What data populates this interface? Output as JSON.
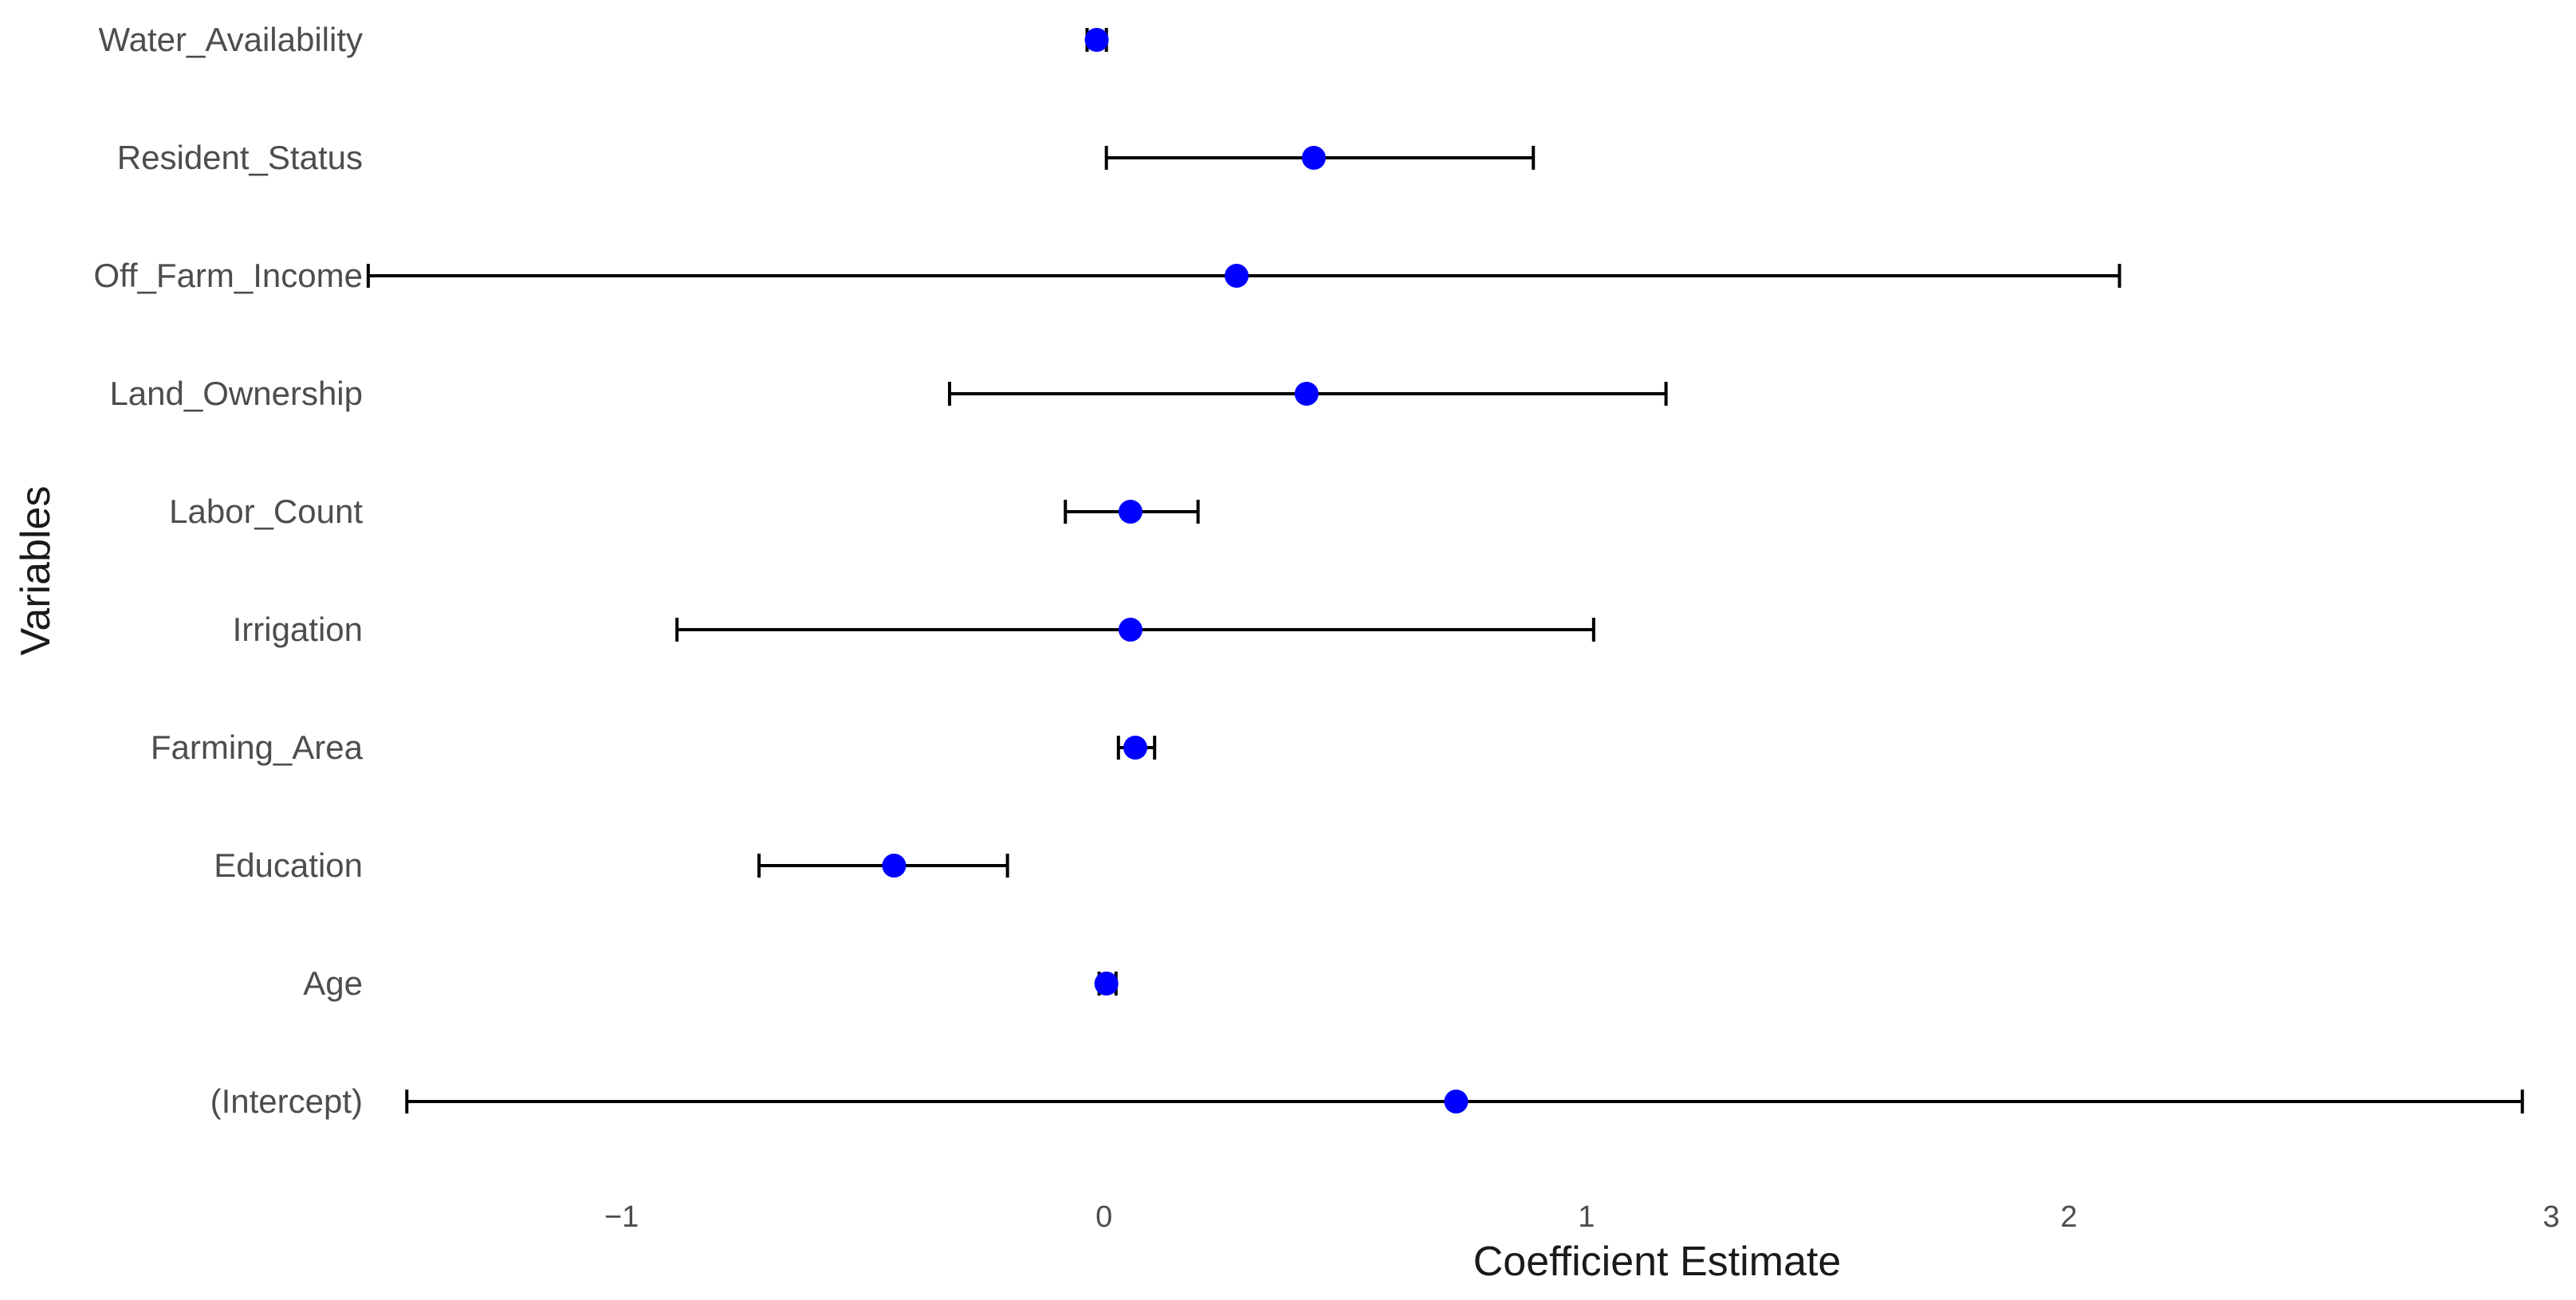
{
  "chart_data": {
    "type": "scatter",
    "xlabel": "Coefficient Estimate",
    "ylabel": "Variables",
    "xlim": [
      -1.5,
      3.0
    ],
    "x_ticks": [
      -1,
      0,
      1,
      2,
      3
    ],
    "x_tick_labels": [
      "−1",
      "0",
      "1",
      "2",
      "3"
    ],
    "grid": false,
    "legend": "none",
    "point_color": "#0000ff",
    "errorbar_color": "#000000",
    "categories": [
      "Water_Availability",
      "Resident_Status",
      "Off_Farm_Income",
      "Land_Ownership",
      "Labor_Count",
      "Irrigation",
      "Farming_Area",
      "Education",
      "Age",
      "(Intercept)"
    ],
    "estimates": [
      -0.015,
      0.435,
      0.275,
      0.42,
      0.055,
      0.055,
      0.065,
      -0.435,
      0.005,
      0.73
    ],
    "ci_lower": [
      -0.035,
      0.005,
      -1.525,
      -0.32,
      -0.08,
      -0.885,
      0.03,
      -0.715,
      -0.01,
      -1.445
    ],
    "ci_upper": [
      0.005,
      0.89,
      2.105,
      1.165,
      0.195,
      1.015,
      0.105,
      -0.2,
      0.025,
      2.94
    ]
  }
}
